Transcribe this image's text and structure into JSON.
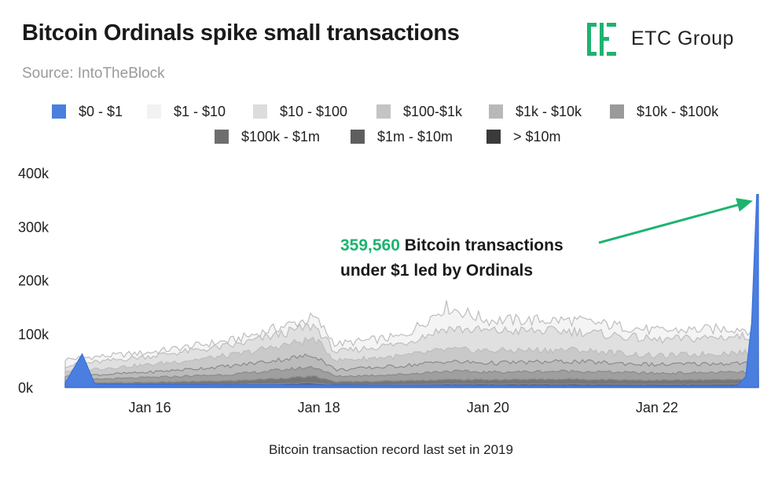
{
  "header": {
    "title": "Bitcoin Ordinals spike small transactions",
    "source": "Source: IntoTheBlock"
  },
  "brand": {
    "name": "ETC Group",
    "accent": "#1db36f"
  },
  "chart_data": {
    "type": "area",
    "title": "Bitcoin Ordinals spike small transactions",
    "ylim": [
      0,
      400000
    ],
    "y_ticks": [
      0,
      100000,
      200000,
      300000,
      400000
    ],
    "y_tick_labels": [
      "0k",
      "100k",
      "200k",
      "300k",
      "400k"
    ],
    "x_range": [
      2015.0,
      2023.2
    ],
    "x_ticks": [
      2016,
      2018,
      2020,
      2022
    ],
    "x_tick_labels": [
      "Jan 16",
      "Jan 18",
      "Jan 20",
      "Jan 22"
    ],
    "legend": [
      {
        "name": "$0 - $1",
        "color": "#4a7fe0"
      },
      {
        "name": "$1 - $10",
        "color": "#f2f2f2"
      },
      {
        "name": "$10 - $100",
        "color": "#dcdcdc"
      },
      {
        "name": "$100-$1k",
        "color": "#c4c4c4"
      },
      {
        "name": "$1k - $10k",
        "color": "#b8b8b8"
      },
      {
        "name": "$10k - $100k",
        "color": "#9a9a9a"
      },
      {
        "name": "$100k - $1m",
        "color": "#6e6e6e"
      },
      {
        "name": "$1m - $10m",
        "color": "#5e5e5e"
      },
      {
        "name": "> $10m",
        "color": "#3a3a3a"
      }
    ],
    "series_upper_values": [
      {
        "name": "$0 - $1",
        "points": [
          [
            2015.0,
            8000
          ],
          [
            2015.2,
            62000
          ],
          [
            2015.35,
            6000
          ],
          [
            2016.0,
            5000
          ],
          [
            2022.0,
            3000
          ],
          [
            2022.95,
            3000
          ],
          [
            2023.05,
            20000
          ],
          [
            2023.12,
            120000
          ],
          [
            2023.18,
            359560
          ]
        ]
      },
      {
        "name": "$1 - $10",
        "points": [
          [
            2015.0,
            52000
          ],
          [
            2016.0,
            65000
          ],
          [
            2017.0,
            88000
          ],
          [
            2017.95,
            130000
          ],
          [
            2018.2,
            80000
          ],
          [
            2019.0,
            95000
          ],
          [
            2019.5,
            150000
          ],
          [
            2020.0,
            125000
          ],
          [
            2021.0,
            125000
          ],
          [
            2022.0,
            105000
          ],
          [
            2023.0,
            110000
          ],
          [
            2023.2,
            100000
          ]
        ]
      },
      {
        "name": "$10 - $100",
        "points": [
          [
            2015.0,
            40000
          ],
          [
            2016.0,
            58000
          ],
          [
            2017.0,
            78000
          ],
          [
            2017.95,
            115000
          ],
          [
            2018.2,
            65000
          ],
          [
            2019.0,
            82000
          ],
          [
            2019.5,
            110000
          ],
          [
            2020.0,
            105000
          ],
          [
            2021.0,
            105000
          ],
          [
            2022.0,
            88000
          ],
          [
            2023.0,
            95000
          ],
          [
            2023.2,
            90000
          ]
        ]
      },
      {
        "name": "$100-$1k",
        "points": [
          [
            2015.0,
            30000
          ],
          [
            2016.0,
            42000
          ],
          [
            2017.0,
            60000
          ],
          [
            2017.95,
            90000
          ],
          [
            2018.2,
            50000
          ],
          [
            2019.0,
            58000
          ],
          [
            2019.5,
            70000
          ],
          [
            2020.0,
            68000
          ],
          [
            2021.0,
            70000
          ],
          [
            2022.0,
            58000
          ],
          [
            2023.0,
            65000
          ],
          [
            2023.2,
            62000
          ]
        ]
      },
      {
        "name": "$1k - $10k",
        "points": [
          [
            2015.0,
            20000
          ],
          [
            2016.0,
            28000
          ],
          [
            2017.0,
            40000
          ],
          [
            2017.95,
            60000
          ],
          [
            2018.2,
            32000
          ],
          [
            2019.0,
            40000
          ],
          [
            2019.5,
            48000
          ],
          [
            2020.0,
            45000
          ],
          [
            2021.0,
            48000
          ],
          [
            2022.0,
            42000
          ],
          [
            2023.0,
            45000
          ],
          [
            2023.2,
            44000
          ]
        ]
      },
      {
        "name": "$10k - $100k",
        "points": [
          [
            2015.0,
            13000
          ],
          [
            2016.0,
            18000
          ],
          [
            2017.0,
            24000
          ],
          [
            2017.95,
            38000
          ],
          [
            2018.2,
            20000
          ],
          [
            2019.0,
            24000
          ],
          [
            2019.5,
            30000
          ],
          [
            2020.0,
            28000
          ],
          [
            2021.0,
            30000
          ],
          [
            2022.0,
            26000
          ],
          [
            2023.0,
            28000
          ],
          [
            2023.2,
            27000
          ]
        ]
      },
      {
        "name": "$100k - $1m",
        "points": [
          [
            2015.0,
            7000
          ],
          [
            2016.0,
            9000
          ],
          [
            2017.0,
            12000
          ],
          [
            2017.95,
            20000
          ],
          [
            2018.2,
            10000
          ],
          [
            2019.0,
            12000
          ],
          [
            2019.5,
            14000
          ],
          [
            2020.0,
            14000
          ],
          [
            2021.0,
            15000
          ],
          [
            2022.0,
            13000
          ],
          [
            2023.0,
            14000
          ],
          [
            2023.2,
            14000
          ]
        ]
      },
      {
        "name": "$1m - $10m",
        "points": [
          [
            2015.0,
            3000
          ],
          [
            2016.0,
            4000
          ],
          [
            2017.0,
            5000
          ],
          [
            2017.95,
            8000
          ],
          [
            2018.2,
            4000
          ],
          [
            2019.0,
            5000
          ],
          [
            2019.5,
            6000
          ],
          [
            2020.0,
            6000
          ],
          [
            2021.0,
            6000
          ],
          [
            2022.0,
            5500
          ],
          [
            2023.0,
            6000
          ],
          [
            2023.2,
            6000
          ]
        ]
      },
      {
        "name": "> $10m",
        "points": [
          [
            2015.0,
            1000
          ],
          [
            2016.0,
            1000
          ],
          [
            2017.0,
            1500
          ],
          [
            2017.95,
            2500
          ],
          [
            2018.2,
            1200
          ],
          [
            2019.0,
            1500
          ],
          [
            2019.5,
            2000
          ],
          [
            2020.0,
            2000
          ],
          [
            2021.0,
            2000
          ],
          [
            2022.0,
            2000
          ],
          [
            2023.0,
            2000
          ],
          [
            2023.2,
            2000
          ]
        ]
      }
    ],
    "annotation": {
      "value": "359,560",
      "text_line1": " Bitcoin transactions",
      "text_line2": "under $1 led by Ordinals",
      "points_to": [
        2023.18,
        359560
      ]
    },
    "footer": "Bitcoin transaction record last set in 2019"
  }
}
